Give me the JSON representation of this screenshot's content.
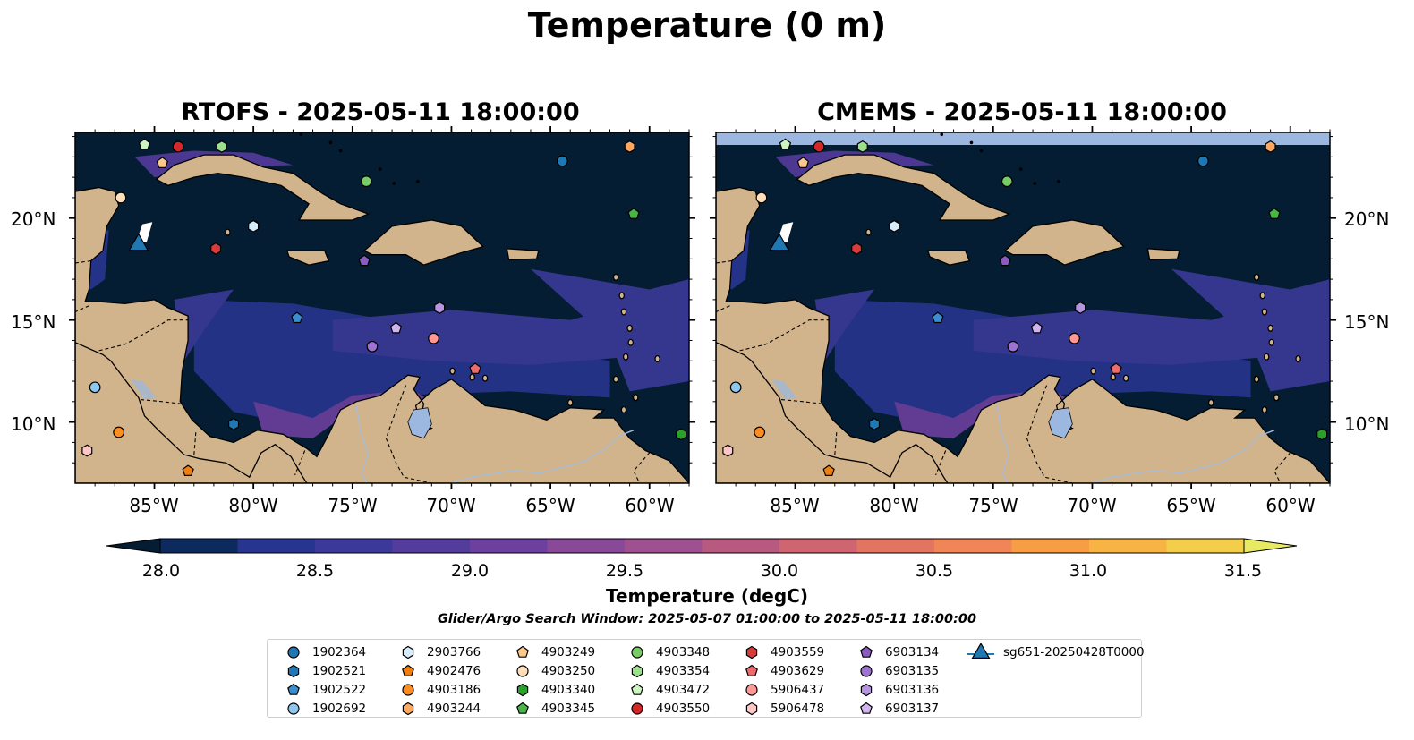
{
  "title": "Temperature (0 m)",
  "panels": [
    {
      "title": "RTOFS - 2025-05-11 18:00:00"
    },
    {
      "title": "CMEMS - 2025-05-11 18:00:00"
    }
  ],
  "lat_ticks": [
    "20°N",
    "15°N",
    "10°N"
  ],
  "lon_ticks": [
    "85°W",
    "80°W",
    "75°W",
    "70°W",
    "65°W",
    "60°W"
  ],
  "colorbar": {
    "label": "Temperature (degC)",
    "ticks": [
      "28.0",
      "28.5",
      "29.0",
      "29.5",
      "30.0",
      "30.5",
      "31.0",
      "31.5"
    ],
    "colors": [
      "#041d32",
      "#0c2a5e",
      "#283590",
      "#3b3a9a",
      "#543c9c",
      "#6d3f9e",
      "#874998",
      "#9f5090",
      "#b85a80",
      "#cf6570",
      "#e27560",
      "#f08658",
      "#f79d44",
      "#f7b445",
      "#f4cd4b",
      "#e8ea61"
    ]
  },
  "subtitle": "Glider/Argo Search Window: 2025-05-07 01:00:00 to 2025-05-11 18:00:00",
  "legend": [
    {
      "label": "1902364",
      "marker": "circle",
      "color": "#1f77b4"
    },
    {
      "label": "1902521",
      "marker": "hexagon",
      "color": "#1f77b4"
    },
    {
      "label": "1902522",
      "marker": "pentagon",
      "color": "#3c8dd0"
    },
    {
      "label": "1902692",
      "marker": "circle",
      "color": "#8ec7ee"
    },
    {
      "label": "2903766",
      "marker": "hexagon",
      "color": "#d6ecfb"
    },
    {
      "label": "4902476",
      "marker": "pentagon",
      "color": "#f07f10"
    },
    {
      "label": "4903186",
      "marker": "circle",
      "color": "#ff8c1f"
    },
    {
      "label": "4903244",
      "marker": "hexagon",
      "color": "#ffa860"
    },
    {
      "label": "4903249",
      "marker": "pentagon",
      "color": "#ffc88a"
    },
    {
      "label": "4903250",
      "marker": "circle",
      "color": "#ffdfba"
    },
    {
      "label": "4903340",
      "marker": "hexagon",
      "color": "#2ca02c"
    },
    {
      "label": "4903345",
      "marker": "pentagon",
      "color": "#47b647"
    },
    {
      "label": "4903348",
      "marker": "circle",
      "color": "#77cc66"
    },
    {
      "label": "4903354",
      "marker": "hexagon",
      "color": "#9ce08d"
    },
    {
      "label": "4903472",
      "marker": "pentagon",
      "color": "#cdf5c0"
    },
    {
      "label": "4903550",
      "marker": "circle",
      "color": "#d62728"
    },
    {
      "label": "4903559",
      "marker": "hexagon",
      "color": "#d93a3a"
    },
    {
      "label": "4903629",
      "marker": "pentagon",
      "color": "#ec6b6b"
    },
    {
      "label": "5906437",
      "marker": "circle",
      "color": "#ff9896"
    },
    {
      "label": "5906478",
      "marker": "hexagon",
      "color": "#ffc6c5"
    },
    {
      "label": "6903134",
      "marker": "pentagon",
      "color": "#8a5cbf"
    },
    {
      "label": "6903135",
      "marker": "circle",
      "color": "#9e72d0"
    },
    {
      "label": "6903136",
      "marker": "hexagon",
      "color": "#b694e0"
    },
    {
      "label": "6903137",
      "marker": "pentagon",
      "color": "#d0b4ef"
    },
    {
      "label": "sg651-20250428T0000",
      "marker": "triangle",
      "color": "#1f77b4"
    }
  ],
  "map_extent": {
    "lon": [
      -89,
      -58
    ],
    "lat": [
      7,
      24.2
    ]
  },
  "observations": [
    {
      "id": "1902364",
      "lon": -64.4,
      "lat": 22.8
    },
    {
      "id": "1902521",
      "lon": -81.0,
      "lat": 9.9
    },
    {
      "id": "1902522",
      "lon": -77.8,
      "lat": 15.1
    },
    {
      "id": "1902692",
      "lon": -88.0,
      "lat": 11.7
    },
    {
      "id": "2903766",
      "lon": -80.0,
      "lat": 19.6
    },
    {
      "id": "4902476",
      "lon": -83.3,
      "lat": 7.6
    },
    {
      "id": "4903186",
      "lon": -86.8,
      "lat": 9.5
    },
    {
      "id": "4903244",
      "lon": -61.0,
      "lat": 23.5
    },
    {
      "id": "4903249",
      "lon": -84.6,
      "lat": 22.7
    },
    {
      "id": "4903250",
      "lon": -86.7,
      "lat": 21.0
    },
    {
      "id": "4903340",
      "lon": -58.4,
      "lat": 9.4
    },
    {
      "id": "4903345",
      "lon": -60.8,
      "lat": 20.2
    },
    {
      "id": "4903348",
      "lon": -74.3,
      "lat": 21.8
    },
    {
      "id": "4903354",
      "lon": -81.6,
      "lat": 23.5
    },
    {
      "id": "4903472",
      "lon": -85.5,
      "lat": 23.6
    },
    {
      "id": "4903550",
      "lon": -83.8,
      "lat": 23.5
    },
    {
      "id": "4903559",
      "lon": -81.9,
      "lat": 18.5
    },
    {
      "id": "4903629",
      "lon": -68.8,
      "lat": 12.6
    },
    {
      "id": "5906437",
      "lon": -70.9,
      "lat": 14.1
    },
    {
      "id": "5906478",
      "lon": -88.4,
      "lat": 8.6
    },
    {
      "id": "6903134",
      "lon": -74.4,
      "lat": 17.9
    },
    {
      "id": "6903135",
      "lon": -74.0,
      "lat": 13.7
    },
    {
      "id": "6903136",
      "lon": -70.6,
      "lat": 15.6
    },
    {
      "id": "6903137",
      "lon": -72.8,
      "lat": 14.6
    }
  ],
  "glider": {
    "id": "sg651-20250428T0000",
    "lon": -85.8,
    "lat": 18.6
  }
}
